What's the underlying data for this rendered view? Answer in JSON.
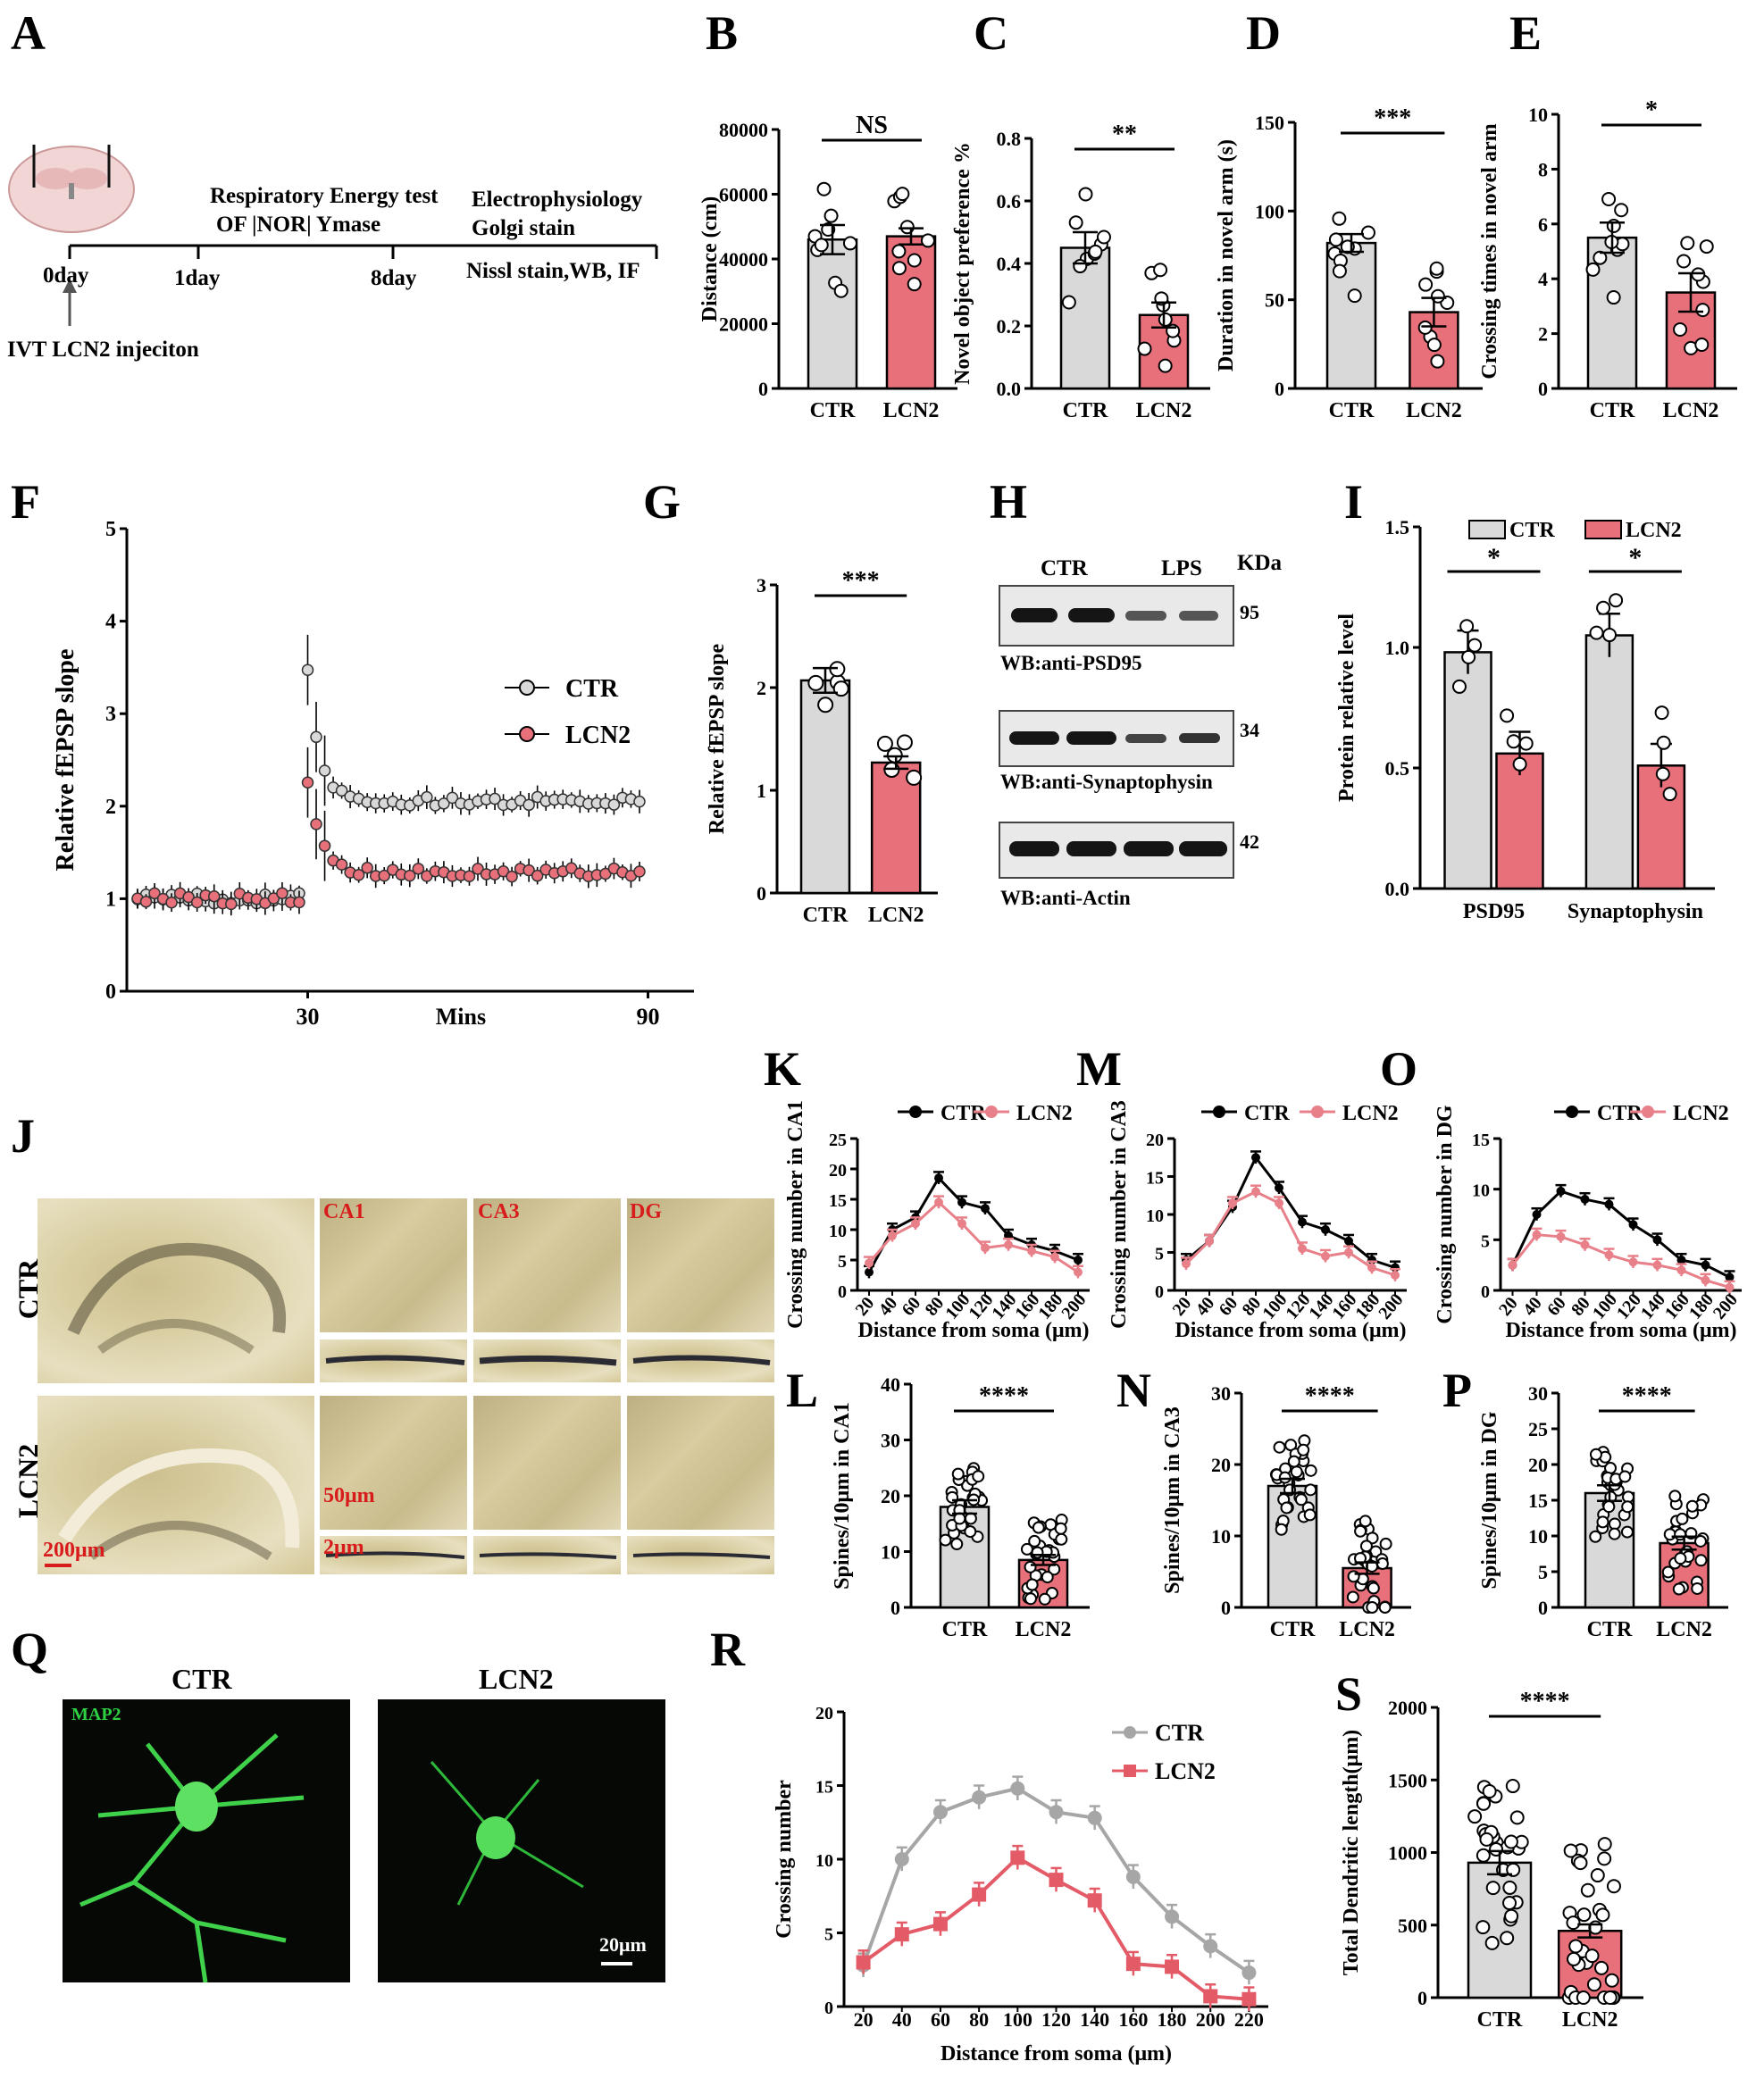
{
  "panels": [
    "A",
    "B",
    "C",
    "D",
    "E",
    "F",
    "G",
    "H",
    "I",
    "J",
    "K",
    "L",
    "M",
    "N",
    "O",
    "P",
    "Q",
    "R",
    "S"
  ],
  "timeline": {
    "start": "0day",
    "day1": "1day",
    "day8": "8day",
    "tests_title": "Respiratory Energy test",
    "tests": "OF |NOR| Ymase",
    "end_line1": "Electrophysiology",
    "end_line2": "Golgi stain",
    "end_line3": "Nissl stain,WB, IF",
    "injection": "IVT LCN2 injeciton"
  },
  "wb": {
    "lanes": [
      "CTR",
      "LPS"
    ],
    "kda": "KDa",
    "blots": [
      {
        "label": "WB:anti-PSD95",
        "mw": "95"
      },
      {
        "label": "WB:anti-Synaptophysin",
        "mw": "34"
      },
      {
        "label": "WB:anti-Actin",
        "mw": "42"
      }
    ]
  },
  "golgi": {
    "rows": [
      "CTR",
      "LCN2"
    ],
    "regions": [
      "CA1",
      "CA3",
      "DG"
    ],
    "scales": [
      "200μm",
      "50μm",
      "2μm"
    ]
  },
  "map2": {
    "titles": [
      "CTR",
      "LCN2"
    ],
    "stain": "MAP2",
    "scale": "20μm"
  },
  "colors": {
    "ctr_bar": "#d9d9d9",
    "lcn2_bar": "#e8707a",
    "line_ctr_gray": "#a6a6a6",
    "line_lcn2_red": "#e45b68",
    "line_black": "#000000",
    "line_pink": "#e8808a"
  },
  "chart_data": [
    {
      "panel": "B",
      "type": "bar",
      "categories": [
        "CTR",
        "LCN2"
      ],
      "values": [
        46000,
        47000
      ],
      "errors": [
        4500,
        2500
      ],
      "ylabel": "Distance (cm)",
      "ylim": [
        0,
        80000
      ],
      "yticks": [
        "0",
        "20000",
        "40000",
        "60000",
        "80000"
      ],
      "sig": "NS"
    },
    {
      "panel": "C",
      "type": "bar",
      "categories": [
        "CTR",
        "LCN2"
      ],
      "values": [
        0.45,
        0.235
      ],
      "errors": [
        0.05,
        0.04
      ],
      "ylabel": "Novel object preference %",
      "ylim": [
        0,
        0.8
      ],
      "yticks": [
        "0.0",
        "0.2",
        "0.4",
        "0.6",
        "0.8"
      ],
      "sig": "**"
    },
    {
      "panel": "D",
      "type": "bar",
      "categories": [
        "CTR",
        "LCN2"
      ],
      "values": [
        82,
        43
      ],
      "errors": [
        5,
        8
      ],
      "ylabel": "Duration in novel arm (s)",
      "ylim": [
        0,
        150
      ],
      "yticks": [
        "0",
        "50",
        "100",
        "150"
      ],
      "sig": "***"
    },
    {
      "panel": "E",
      "type": "bar",
      "categories": [
        "CTR",
        "LCN2"
      ],
      "values": [
        5.5,
        3.5
      ],
      "errors": [
        0.55,
        0.7
      ],
      "ylabel": "Crossing times in novel arm",
      "ylim": [
        0,
        10
      ],
      "yticks": [
        "0",
        "2",
        "4",
        "6",
        "8",
        "10"
      ],
      "sig": "*"
    },
    {
      "panel": "F",
      "type": "line",
      "series": [
        {
          "name": "CTR"
        },
        {
          "name": "LCN2"
        }
      ],
      "ylabel": "Relative fEPSP slope",
      "xlabel": "Mins",
      "xticks": [
        "30",
        "90"
      ],
      "ylim": [
        0,
        5
      ],
      "yticks": [
        "0",
        "1",
        "2",
        "3",
        "4",
        "5"
      ],
      "baseline": 1.0,
      "ctr_peak": 3.5,
      "ctr_plateau": 2.05,
      "lcn2_peak": 2.3,
      "lcn2_plateau": 1.28
    },
    {
      "panel": "G",
      "type": "bar",
      "categories": [
        "CTR",
        "LCN2"
      ],
      "values": [
        2.07,
        1.27
      ],
      "errors": [
        0.12,
        0.06
      ],
      "ylabel": "Relative fEPSP slope",
      "ylim": [
        0,
        3
      ],
      "yticks": [
        "0",
        "1",
        "2",
        "3"
      ],
      "sig": "***"
    },
    {
      "panel": "I",
      "type": "bar",
      "categories": [
        "PSD95",
        "Synaptophysin"
      ],
      "series": [
        {
          "name": "CTR",
          "values": [
            0.98,
            1.05
          ]
        },
        {
          "name": "LCN2",
          "values": [
            0.56,
            0.51
          ]
        }
      ],
      "ylabel": "Protein relative level",
      "ylim": [
        0,
        1.5
      ],
      "yticks": [
        "0.0",
        "0.5",
        "1.0",
        "1.5"
      ],
      "sig": [
        "*",
        "*"
      ]
    },
    {
      "panel": "K",
      "type": "line",
      "x": [
        20,
        40,
        60,
        80,
        100,
        120,
        140,
        160,
        180,
        200
      ],
      "series": [
        {
          "name": "CTR",
          "values": [
            3,
            10,
            12,
            18.5,
            14.5,
            13.5,
            9,
            7.5,
            6.5,
            5
          ]
        },
        {
          "name": "LCN2",
          "values": [
            4.5,
            9,
            11,
            14.5,
            11,
            7,
            7.5,
            6.5,
            5.5,
            3
          ]
        }
      ],
      "ylabel": "Crossing number in CA1",
      "xlabel": "Distance from soma (μm)",
      "ylim": [
        0,
        25
      ],
      "yticks": [
        "0",
        "5",
        "10",
        "15",
        "20",
        "25"
      ]
    },
    {
      "panel": "M",
      "type": "line",
      "x": [
        20,
        40,
        60,
        80,
        100,
        120,
        140,
        160,
        180,
        200
      ],
      "series": [
        {
          "name": "CTR",
          "values": [
            4,
            6.5,
            11,
            17.5,
            13.5,
            9,
            8,
            6.5,
            4,
            3
          ]
        },
        {
          "name": "LCN2",
          "values": [
            3.5,
            6.5,
            11.5,
            13,
            11.5,
            5.5,
            4.5,
            5,
            3,
            2
          ]
        }
      ],
      "ylabel": "Crossing number in CA3",
      "xlabel": "Distance from soma (μm)",
      "ylim": [
        0,
        20
      ],
      "yticks": [
        "0",
        "5",
        "10",
        "15",
        "20"
      ]
    },
    {
      "panel": "O",
      "type": "line",
      "x": [
        20,
        40,
        60,
        80,
        100,
        120,
        140,
        160,
        180,
        200
      ],
      "series": [
        {
          "name": "CTR",
          "values": [
            2.5,
            7.5,
            9.8,
            9,
            8.5,
            6.5,
            5,
            3,
            2.5,
            1.3
          ]
        },
        {
          "name": "LCN2",
          "values": [
            2.5,
            5.5,
            5.3,
            4.5,
            3.5,
            2.8,
            2.5,
            2,
            1,
            0.3
          ]
        }
      ],
      "ylabel": "Crossing number in DG",
      "xlabel": "Distance from soma (μm)",
      "ylim": [
        0,
        15
      ],
      "yticks": [
        "0",
        "5",
        "10",
        "15"
      ]
    },
    {
      "panel": "L",
      "type": "bar",
      "categories": [
        "CTR",
        "LCN2"
      ],
      "values": [
        18,
        8.5
      ],
      "errors": [
        1.2,
        0.9
      ],
      "ylabel": "Spines/10μm in CA1",
      "ylim": [
        0,
        40
      ],
      "yticks": [
        "0",
        "10",
        "20",
        "30",
        "40"
      ],
      "sig": "****"
    },
    {
      "panel": "N",
      "type": "bar",
      "categories": [
        "CTR",
        "LCN2"
      ],
      "values": [
        17,
        5.5
      ],
      "errors": [
        1.0,
        0.8
      ],
      "ylabel": "Spines/10μm in CA3",
      "ylim": [
        0,
        30
      ],
      "yticks": [
        "0",
        "10",
        "20",
        "30"
      ],
      "sig": "****"
    },
    {
      "panel": "P",
      "type": "bar",
      "categories": [
        "CTR",
        "LCN2"
      ],
      "values": [
        16,
        9
      ],
      "errors": [
        1.1,
        0.9
      ],
      "ylabel": "Spines/10μm in DG",
      "ylim": [
        0,
        30
      ],
      "yticks": [
        "0",
        "5",
        "10",
        "15",
        "20",
        "25",
        "30"
      ],
      "sig": "****"
    },
    {
      "panel": "R",
      "type": "line",
      "x": [
        20,
        40,
        60,
        80,
        100,
        120,
        140,
        160,
        180,
        200,
        220
      ],
      "series": [
        {
          "name": "CTR",
          "values": [
            2.8,
            10,
            13.2,
            14.2,
            14.8,
            13.2,
            12.8,
            8.8,
            6.1,
            4.1,
            2.3
          ]
        },
        {
          "name": "LCN2",
          "values": [
            3,
            4.9,
            5.6,
            7.6,
            10.1,
            8.6,
            7.2,
            2.9,
            2.7,
            0.7,
            0.5
          ]
        }
      ],
      "ylabel": "Crossing number",
      "xlabel": "Distance from soma (μm)",
      "ylim": [
        0,
        20
      ],
      "yticks": [
        "0",
        "5",
        "10",
        "15",
        "20"
      ]
    },
    {
      "panel": "S",
      "type": "bar",
      "categories": [
        "CTR",
        "LCN2"
      ],
      "values": [
        930,
        460
      ],
      "errors": [
        80,
        45
      ],
      "ylabel": "Total Dendritic length(μm)",
      "ylim": [
        0,
        2000
      ],
      "yticks": [
        "0",
        "500",
        "1000",
        "1500",
        "2000"
      ],
      "sig": "****"
    }
  ]
}
